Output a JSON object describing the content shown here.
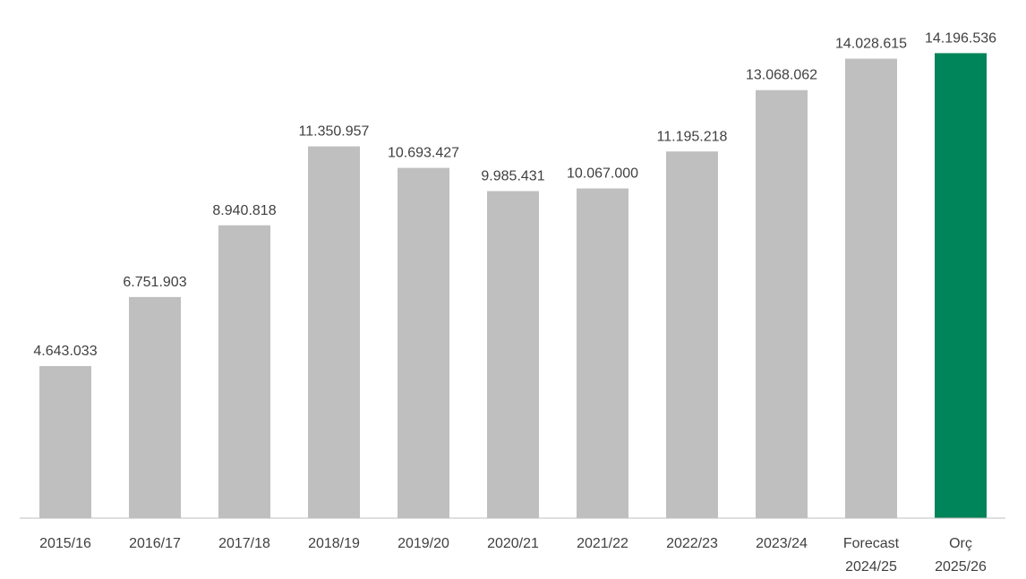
{
  "chart_data": {
    "type": "bar",
    "categories": [
      "2015/16",
      "2016/17",
      "2017/18",
      "2018/19",
      "2019/20",
      "2020/21",
      "2021/22",
      "2022/23",
      "2023/24",
      "Forecast 2024/25",
      "Orç 2025/26"
    ],
    "values": [
      4643033,
      6751903,
      8940818,
      11350957,
      10693427,
      9985431,
      10067000,
      11195218,
      13068062,
      14028615,
      14196536
    ],
    "value_labels": [
      "4.643.033",
      "6.751.903",
      "8.940.818",
      "11.350.957",
      "10.693.427",
      "9.985.431",
      "10.067.000",
      "11.195.218",
      "13.068.062",
      "14.028.615",
      "14.196.536"
    ],
    "colors": [
      "#bfbfbf",
      "#bfbfbf",
      "#bfbfbf",
      "#bfbfbf",
      "#bfbfbf",
      "#bfbfbf",
      "#bfbfbf",
      "#bfbfbf",
      "#bfbfbf",
      "#bfbfbf",
      "#00845a"
    ],
    "ylim": [
      0,
      15000000
    ]
  }
}
